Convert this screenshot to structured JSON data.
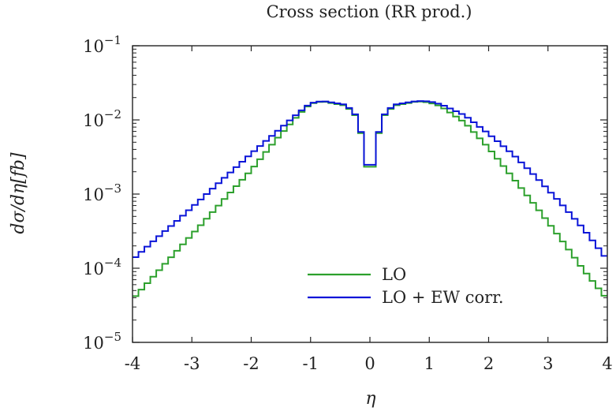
{
  "chart_data": {
    "type": "line",
    "title": "Cross section (RR prod.)",
    "xlabel": "η",
    "ylabel": "dσ/dη[fb]",
    "xlim": [
      -4,
      4
    ],
    "ylim": [
      1e-05,
      0.1
    ],
    "yscale": "log",
    "x_ticks": [
      -4,
      -3,
      -2,
      -1,
      0,
      1,
      2,
      3,
      4
    ],
    "x_tick_labels": [
      "-4",
      "-3",
      "-2",
      "-1",
      "0",
      "1",
      "2",
      "3",
      "4"
    ],
    "y_ticks": [
      0.1,
      0.01,
      0.001,
      0.0001,
      1e-05
    ],
    "y_tick_labels": [
      {
        "base": "10",
        "exp": "−1"
      },
      {
        "base": "10",
        "exp": "−2"
      },
      {
        "base": "10",
        "exp": "−3"
      },
      {
        "base": "10",
        "exp": "−4"
      },
      {
        "base": "10",
        "exp": "−5"
      }
    ],
    "grid": false,
    "legend": "bottom-center",
    "x": [
      -4.0,
      -3.6,
      -3.2,
      -2.8,
      -2.4,
      -2.0,
      -1.6,
      -1.2,
      -1.0,
      -0.8,
      -0.4,
      -0.2,
      -0.1,
      0.0,
      0.1,
      0.2,
      0.4,
      0.8,
      1.0,
      1.2,
      1.6,
      2.0,
      2.4,
      2.8,
      3.2,
      3.6,
      4.0
    ],
    "series": [
      {
        "name": "LO",
        "color": "#2ca02c",
        "values": [
          3.8e-05,
          8.5e-05,
          0.00019,
          0.00042,
          0.00095,
          0.0021,
          0.0052,
          0.0118,
          0.0165,
          0.0178,
          0.0155,
          0.0105,
          0.0042,
          0.0013,
          0.0042,
          0.0105,
          0.0155,
          0.0178,
          0.0172,
          0.0152,
          0.0092,
          0.0042,
          0.0017,
          0.00068,
          0.00026,
          9.5e-05,
          3.8e-05
        ]
      },
      {
        "name": "LO + EW corr.",
        "color": "#0a14d8",
        "values": [
          0.00013,
          0.00025,
          0.00047,
          0.00092,
          0.0018,
          0.0035,
          0.0066,
          0.0125,
          0.0168,
          0.018,
          0.016,
          0.0108,
          0.0044,
          0.0014,
          0.0044,
          0.0108,
          0.016,
          0.018,
          0.0178,
          0.0162,
          0.0115,
          0.0065,
          0.0035,
          0.0017,
          0.00078,
          0.00034,
          0.00013
        ]
      }
    ]
  }
}
